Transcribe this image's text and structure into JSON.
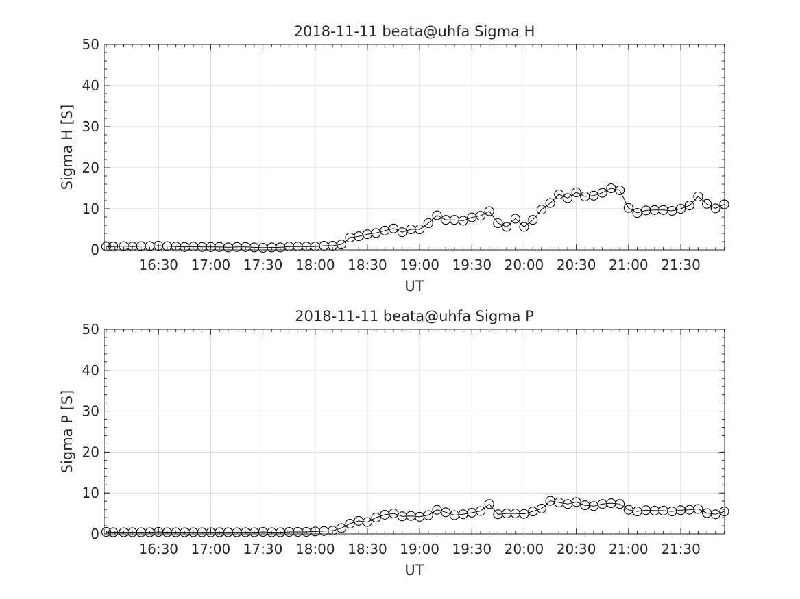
{
  "chart_data": [
    {
      "type": "line",
      "title": "2018-11-11  beata@uhfa Sigma H",
      "xlabel": "UT",
      "ylabel": "Sigma H [S]",
      "ylim": [
        0,
        50
      ],
      "yticks": [
        0,
        10,
        20,
        30,
        40,
        50
      ],
      "xlim": [
        "16:00",
        "21:55"
      ],
      "xticks": [
        "16:30",
        "17:00",
        "17:30",
        "18:00",
        "18:30",
        "19:00",
        "19:30",
        "20:00",
        "20:30",
        "21:00",
        "21:30"
      ],
      "grid": true,
      "marker": "circle",
      "series": [
        {
          "x": [
            "16:00",
            "16:04",
            "16:10",
            "16:15",
            "16:20",
            "16:25",
            "16:30",
            "16:35",
            "16:40",
            "16:45",
            "16:50",
            "16:55",
            "17:00",
            "17:05",
            "17:10",
            "17:15",
            "17:20",
            "17:25",
            "17:30",
            "17:35",
            "17:40",
            "17:45",
            "17:50",
            "17:55",
            "18:00",
            "18:05",
            "18:10",
            "18:15",
            "18:20",
            "18:25",
            "18:30",
            "18:35",
            "18:40",
            "18:45",
            "18:50",
            "18:55",
            "19:00",
            "19:05",
            "19:10",
            "19:15",
            "19:20",
            "19:25",
            "19:30",
            "19:35",
            "19:40",
            "19:45",
            "19:50",
            "19:55",
            "20:00",
            "20:05",
            "20:10",
            "20:15",
            "20:20",
            "20:25",
            "20:30",
            "20:35",
            "20:40",
            "20:45",
            "20:50",
            "20:55",
            "21:00",
            "21:05",
            "21:10",
            "21:15",
            "21:20",
            "21:25",
            "21:30",
            "21:35",
            "21:40",
            "21:45",
            "21:50",
            "21:55"
          ],
          "y": [
            0.8,
            0.8,
            0.9,
            0.8,
            0.9,
            0.9,
            1.0,
            0.9,
            0.8,
            0.7,
            0.8,
            0.7,
            0.7,
            0.7,
            0.6,
            0.7,
            0.7,
            0.6,
            0.5,
            0.6,
            0.6,
            0.8,
            0.8,
            0.8,
            0.8,
            1.0,
            1.0,
            1.3,
            3.0,
            3.3,
            3.8,
            4.1,
            4.7,
            5.2,
            4.3,
            5.0,
            5.0,
            6.5,
            8.4,
            7.3,
            7.3,
            7.1,
            7.9,
            8.3,
            9.4,
            6.5,
            5.6,
            7.6,
            5.6,
            7.3,
            9.8,
            11.4,
            13.5,
            12.6,
            14.0,
            13.0,
            13.2,
            13.9,
            15.0,
            14.5,
            10.2,
            9.0,
            9.6,
            9.7,
            9.7,
            9.5,
            10.0,
            10.8,
            13.0,
            11.2,
            10.1,
            11.1
          ]
        }
      ]
    },
    {
      "type": "line",
      "title": "2018-11-11  beata@uhfa Sigma P",
      "xlabel": "UT",
      "ylabel": "Sigma P [S]",
      "ylim": [
        0,
        50
      ],
      "yticks": [
        0,
        10,
        20,
        30,
        40,
        50
      ],
      "xlim": [
        "16:00",
        "21:55"
      ],
      "xticks": [
        "16:30",
        "17:00",
        "17:30",
        "18:00",
        "18:30",
        "19:00",
        "19:30",
        "20:00",
        "20:30",
        "21:00",
        "21:30"
      ],
      "grid": true,
      "marker": "circle",
      "series": [
        {
          "x": [
            "16:00",
            "16:04",
            "16:10",
            "16:15",
            "16:20",
            "16:25",
            "16:30",
            "16:35",
            "16:40",
            "16:45",
            "16:50",
            "16:55",
            "17:00",
            "17:05",
            "17:10",
            "17:15",
            "17:20",
            "17:25",
            "17:30",
            "17:35",
            "17:40",
            "17:45",
            "17:50",
            "17:55",
            "18:00",
            "18:05",
            "18:10",
            "18:15",
            "18:20",
            "18:25",
            "18:30",
            "18:35",
            "18:40",
            "18:45",
            "18:50",
            "18:55",
            "19:00",
            "19:05",
            "19:10",
            "19:15",
            "19:20",
            "19:25",
            "19:30",
            "19:35",
            "19:40",
            "19:45",
            "19:50",
            "19:55",
            "20:00",
            "20:05",
            "20:10",
            "20:15",
            "20:20",
            "20:25",
            "20:30",
            "20:35",
            "20:40",
            "20:45",
            "20:50",
            "20:55",
            "21:00",
            "21:05",
            "21:10",
            "21:15",
            "21:20",
            "21:25",
            "21:30",
            "21:35",
            "21:40",
            "21:45",
            "21:50",
            "21:55"
          ],
          "y": [
            0.5,
            0.4,
            0.4,
            0.4,
            0.4,
            0.4,
            0.5,
            0.4,
            0.4,
            0.4,
            0.4,
            0.4,
            0.4,
            0.4,
            0.4,
            0.4,
            0.4,
            0.4,
            0.5,
            0.4,
            0.4,
            0.5,
            0.5,
            0.5,
            0.6,
            0.7,
            0.8,
            1.4,
            2.5,
            3.2,
            2.9,
            4.0,
            4.7,
            5.0,
            4.3,
            4.4,
            4.2,
            4.6,
            5.9,
            5.3,
            4.6,
            4.8,
            5.2,
            5.6,
            7.3,
            4.8,
            5.0,
            5.0,
            4.9,
            5.5,
            6.2,
            8.1,
            7.7,
            7.3,
            7.8,
            7.0,
            6.8,
            7.3,
            7.5,
            7.3,
            5.9,
            5.5,
            5.8,
            5.7,
            5.7,
            5.5,
            5.8,
            5.9,
            6.1,
            5.1,
            4.8,
            5.5
          ]
        }
      ]
    }
  ]
}
